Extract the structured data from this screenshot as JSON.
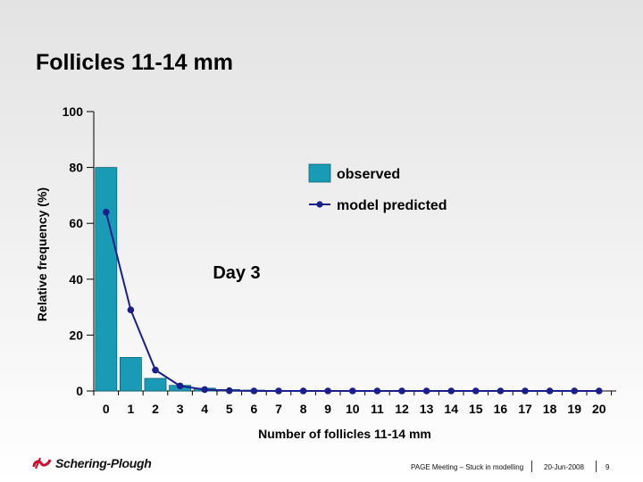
{
  "slide": {
    "title": "Follicles 11-14 mm",
    "annotation": "Day 3"
  },
  "footer": {
    "logo_text": "Schering-Plough",
    "meeting": "PAGE Meeting – Stuck in modelling",
    "date": "20-Jun-2008",
    "page": "9"
  },
  "chart_data": {
    "type": "bar",
    "title": "Follicles 11-14 mm",
    "xlabel": "Number of follicles 11-14 mm",
    "ylabel": "Relative frequency (%)",
    "ylim": [
      0,
      100
    ],
    "yticks": [
      0,
      20,
      40,
      60,
      80,
      100
    ],
    "categories": [
      "0",
      "1",
      "2",
      "3",
      "4",
      "5",
      "6",
      "7",
      "8",
      "9",
      "10",
      "11",
      "12",
      "13",
      "14",
      "15",
      "16",
      "17",
      "18",
      "19",
      "20"
    ],
    "series": [
      {
        "name": "observed",
        "kind": "bar",
        "color": "#1a9bb5",
        "values": [
          80,
          12,
          4.5,
          2,
          1,
          0.5,
          0.3,
          0.2,
          0,
          0,
          0,
          0,
          0,
          0,
          0,
          0,
          0,
          0,
          0,
          0,
          0
        ]
      },
      {
        "name": "model predicted",
        "kind": "line",
        "color": "#1a1f8c",
        "values": [
          64,
          29,
          7.5,
          1.8,
          0.5,
          0.1,
          0,
          0,
          0,
          0,
          0,
          0,
          0,
          0,
          0,
          0,
          0,
          0,
          0,
          0,
          0
        ]
      }
    ],
    "legend": [
      "observed",
      "model predicted"
    ],
    "legend_position": "top-right",
    "grid": false
  },
  "colors": {
    "bar_fill": "#1a9bb5",
    "line": "#1a1f8c",
    "axis": "#000000"
  }
}
